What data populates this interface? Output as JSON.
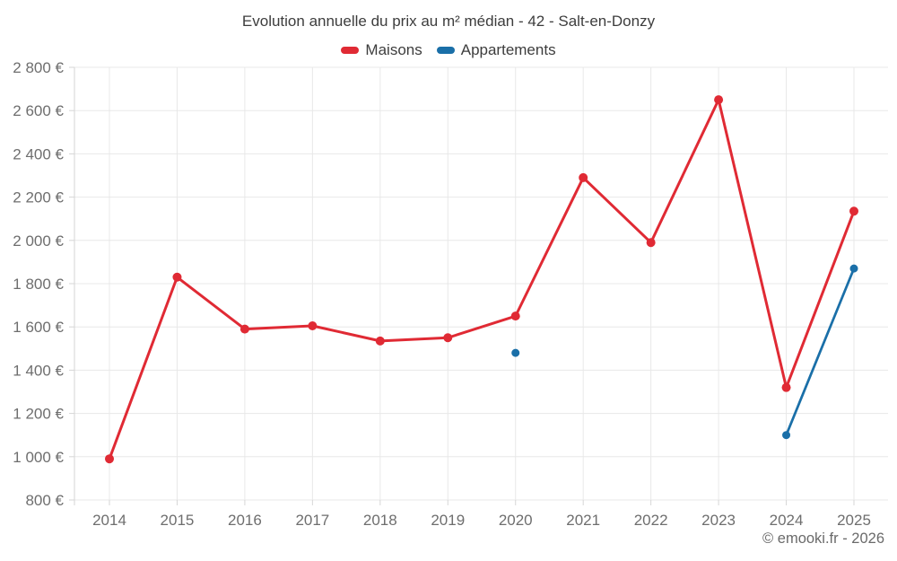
{
  "footer": {
    "copyright": "© emooki.fr - 2026"
  },
  "colors": {
    "background": "#ffffff",
    "grid_line": "#e8e8e8",
    "axis_line": "#d6d6d6",
    "tick_label": "#6e6e6e",
    "title_text": "#3d3d3d",
    "maisons_red": "#e02a34",
    "appartements_blue": "#1a6fa8"
  },
  "chart_data": {
    "type": "line",
    "title": "Evolution annuelle du prix au m² médian - 42 - Salt-en-Donzy",
    "categories": [
      "2014",
      "2015",
      "2016",
      "2017",
      "2018",
      "2019",
      "2020",
      "2021",
      "2022",
      "2023",
      "2024",
      "2025"
    ],
    "series": [
      {
        "name": "Maisons",
        "color": "#e02a34",
        "marker_radius": 5,
        "line_width": 3,
        "values": [
          990,
          1830,
          1590,
          1605,
          1535,
          1550,
          1650,
          2290,
          1990,
          2650,
          1320,
          2135
        ]
      },
      {
        "name": "Appartements",
        "color": "#1a6fa8",
        "marker_radius": 4.5,
        "line_width": 2.75,
        "values": [
          null,
          null,
          null,
          null,
          null,
          null,
          1480,
          null,
          null,
          null,
          1100,
          1870
        ]
      }
    ],
    "xlabel": "",
    "ylabel": "",
    "ylim": [
      800,
      2800
    ],
    "yticks": [
      800,
      1000,
      1200,
      1400,
      1600,
      1800,
      2000,
      2200,
      2400,
      2600,
      2800
    ],
    "ytick_labels": [
      "800 €",
      "1 000 €",
      "1 200 €",
      "1 400 €",
      "1 600 €",
      "1 800 €",
      "2 000 €",
      "2 200 €",
      "2 400 €",
      "2 600 €",
      "2 800 €"
    ],
    "grid": true,
    "legend_position": "top"
  }
}
